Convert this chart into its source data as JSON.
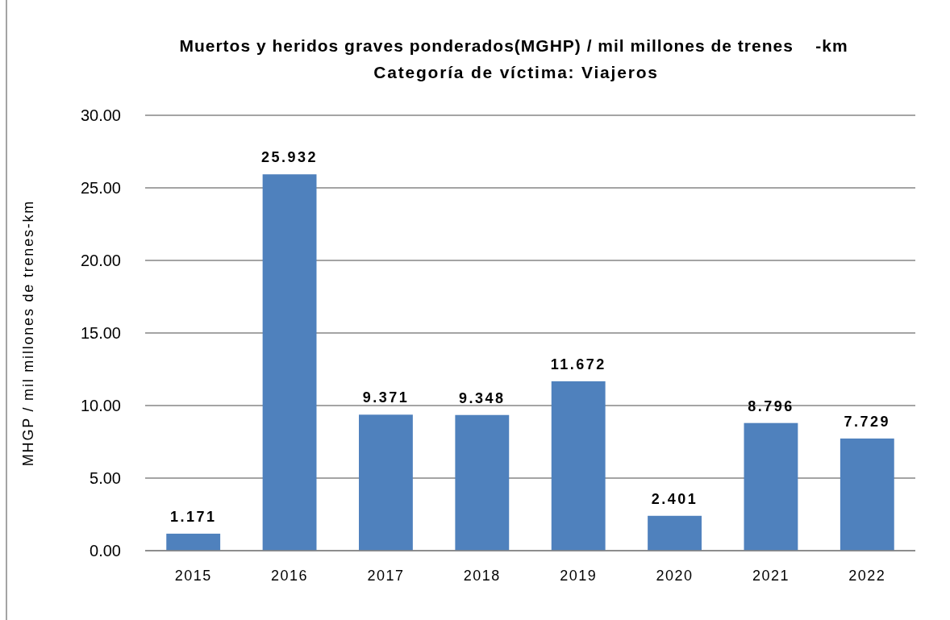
{
  "chart_data": {
    "type": "bar",
    "title": "Muertos y heridos graves ponderados(MGHP) / mil millones de trenes    -km",
    "subtitle": "Categoría de víctima: Viajeros",
    "ylabel": "MHGP / mil millones de trenes-km",
    "categories": [
      "2015",
      "2016",
      "2017",
      "2018",
      "2019",
      "2020",
      "2021",
      "2022"
    ],
    "values": [
      1.171,
      25.932,
      9.371,
      9.348,
      11.672,
      2.401,
      8.796,
      7.729
    ],
    "color": "#4f81bd",
    "ylim": [
      0,
      30
    ],
    "yticks": [
      {
        "value": 0,
        "label": "0.00"
      },
      {
        "value": 5,
        "label": "5.00"
      },
      {
        "value": 10,
        "label": "10.00"
      },
      {
        "value": 15,
        "label": "15.00"
      },
      {
        "value": 20,
        "label": "20.00"
      },
      {
        "value": 25,
        "label": "25.00"
      },
      {
        "value": 30,
        "label": "30.00"
      }
    ],
    "grid": "y",
    "data_labels": true
  }
}
